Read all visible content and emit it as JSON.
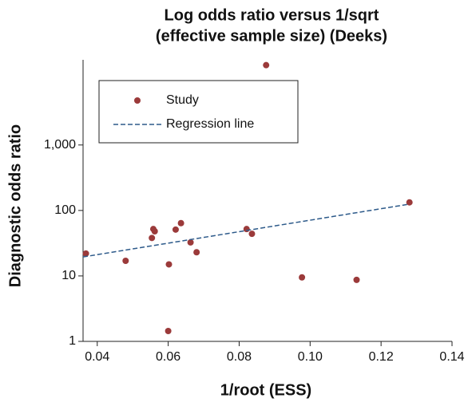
{
  "chart_data": {
    "type": "scatter",
    "title": [
      "Log odds ratio versus 1/sqrt",
      "(effective sample size) (Deeks)"
    ],
    "x_label": "1/root (ESS)",
    "y_label": "Diagnostic odds ratio",
    "log_y": true,
    "xlim": [
      0.036,
      0.14
    ],
    "ylim": [
      1,
      20000
    ],
    "xticks": [
      0.04,
      0.06,
      0.08,
      0.1,
      0.12,
      0.14
    ],
    "x_tick_labels": [
      "0.04",
      "0.06",
      "0.08",
      "0.10",
      "0.12",
      "0.14"
    ],
    "yticks": [
      1,
      10,
      100,
      {
        "value": 1000,
        "label": "1,000"
      }
    ],
    "legend_position": "upper-left",
    "series": [
      {
        "name": "Study",
        "type": "scatter",
        "color": "#9b3a3a",
        "x": [
          0.0368,
          0.048,
          0.0554,
          0.0558,
          0.0562,
          0.0602,
          0.0621,
          0.0636,
          0.0663,
          0.068,
          0.0821,
          0.0836,
          0.0876,
          0.0977,
          0.1131,
          0.128,
          0.06
        ],
        "values": [
          22,
          17,
          38,
          52,
          48,
          15,
          51,
          64,
          32.5,
          23,
          52,
          44,
          16600,
          9.5,
          8.7,
          133,
          1.44
        ]
      },
      {
        "name": "Regression line",
        "type": "line",
        "color": "#2d5a8a",
        "x": [
          0.036,
          0.128
        ],
        "values": [
          19.5,
          125
        ]
      }
    ]
  }
}
